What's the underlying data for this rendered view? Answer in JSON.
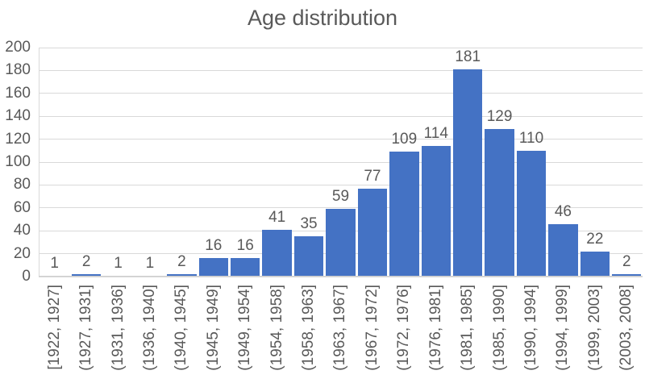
{
  "chart_data": {
    "type": "bar",
    "title": "Age distribution",
    "categories": [
      "[1922, 1927]",
      "(1927, 1931]",
      "(1931, 1936]",
      "(1936, 1940]",
      "(1940, 1945]",
      "(1945, 1949]",
      "(1949, 1954]",
      "(1954, 1958]",
      "(1958, 1963]",
      "(1963, 1967]",
      "(1967, 1972]",
      "(1972, 1976]",
      "(1976, 1981]",
      "(1981, 1985]",
      "(1985, 1990]",
      "(1990, 1994]",
      "(1994, 1999]",
      "(1999, 2003]",
      "(2003, 2008]"
    ],
    "values": [
      1,
      2,
      1,
      1,
      2,
      16,
      16,
      41,
      35,
      59,
      77,
      109,
      114,
      181,
      129,
      110,
      46,
      22,
      2
    ],
    "xlabel": "",
    "ylabel": "",
    "ylim": [
      0,
      200
    ],
    "y_ticks": [
      0,
      20,
      40,
      60,
      80,
      100,
      120,
      140,
      160,
      180,
      200
    ],
    "grid": true,
    "legend": false,
    "data_labels": true,
    "x_label_rotation": -90,
    "bar_color": "#4472c4",
    "text_color": "#595959",
    "gridline_color": "#d9d9d9",
    "axis_line_color": "#cfcfcf",
    "background_color": "#ffffff"
  }
}
